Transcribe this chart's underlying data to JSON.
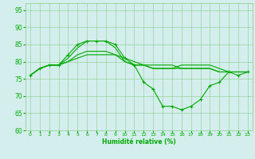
{
  "x": [
    0,
    1,
    2,
    3,
    4,
    5,
    6,
    7,
    8,
    9,
    10,
    11,
    12,
    13,
    14,
    15,
    16,
    17,
    18,
    19,
    20,
    21,
    22,
    23
  ],
  "line1": [
    76,
    78,
    79,
    79,
    82,
    85,
    86,
    86,
    86,
    85,
    81,
    79,
    74,
    72,
    67,
    67,
    66,
    67,
    69,
    73,
    74,
    77,
    76,
    77
  ],
  "line2": [
    76,
    78,
    79,
    79,
    81,
    84,
    86,
    86,
    86,
    84,
    80,
    79,
    79,
    78,
    78,
    78,
    79,
    79,
    79,
    79,
    78,
    77,
    77,
    77
  ],
  "line3": [
    76,
    78,
    79,
    79,
    80,
    82,
    83,
    83,
    83,
    82,
    80,
    79,
    79,
    78,
    78,
    78,
    78,
    78,
    78,
    78,
    77,
    77,
    77,
    77
  ],
  "line4": [
    76,
    78,
    79,
    79,
    80,
    81,
    82,
    82,
    82,
    82,
    81,
    80,
    79,
    79,
    79,
    79,
    78,
    78,
    78,
    78,
    77,
    77,
    77,
    77
  ],
  "xlabel": "Humidité relative (%)",
  "ylim": [
    60,
    97
  ],
  "xlim": [
    -0.5,
    23.5
  ],
  "yticks": [
    60,
    65,
    70,
    75,
    80,
    85,
    90,
    95
  ],
  "xticks": [
    0,
    1,
    2,
    3,
    4,
    5,
    6,
    7,
    8,
    9,
    10,
    11,
    12,
    13,
    14,
    15,
    16,
    17,
    18,
    19,
    20,
    21,
    22,
    23
  ],
  "line_color": "#00aa00",
  "bg_color": "#d4eeee",
  "grid_color": "#88cc88"
}
